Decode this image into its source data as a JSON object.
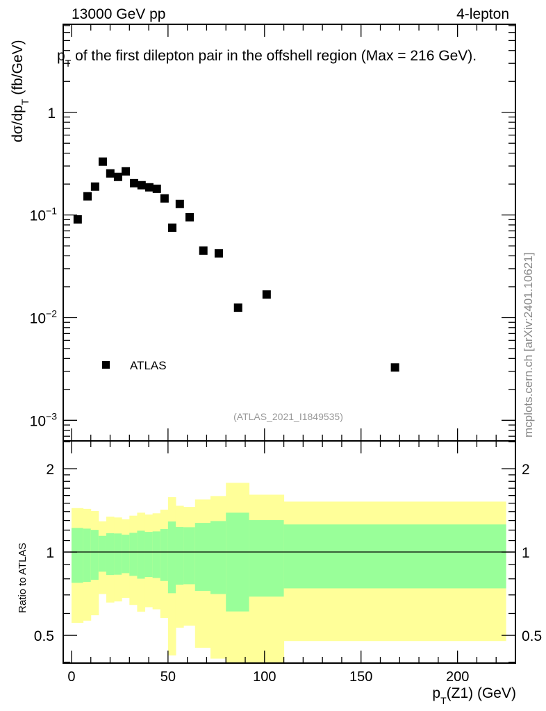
{
  "header": {
    "left": "13000 GeV pp",
    "right": "4-lepton"
  },
  "watermark": "mcplots.cern.ch [arXiv:2401.10621]",
  "analysis_id": "(ATLAS_2021_I1849535)",
  "chart_data": [
    {
      "type": "scatter",
      "title": "p_T of the first dilepton pair in the offshell region (Max = 216 GeV).",
      "title_main": "p",
      "title_sub": "T",
      "title_rest": " of the first dilepton pair in the offshell region (Max = 216 GeV).",
      "ylabel": "dσ/dp_T (fb/GeV)",
      "ylabel_main": "dσ/dp",
      "ylabel_sub": "T",
      "ylabel_rest": " (fb/GeV)",
      "yscale": "log",
      "xlim": [
        -4.3,
        230
      ],
      "ylim": [
        0.00063,
        7.2
      ],
      "ytick_labels": [
        {
          "value": 1,
          "base": "1",
          "exp": ""
        },
        {
          "value": 0.1,
          "base": "10",
          "exp": "−1"
        },
        {
          "value": 0.01,
          "base": "10",
          "exp": "−2"
        },
        {
          "value": 0.001,
          "base": "10",
          "exp": "−3"
        }
      ],
      "legend": {
        "placement": "bottom-left",
        "entries": [
          "ATLAS"
        ]
      },
      "series": [
        {
          "name": "ATLAS",
          "marker": "square",
          "bin_edges": [
            0,
            6,
            10,
            14,
            18,
            22,
            26,
            30,
            34,
            38,
            42,
            46,
            50,
            54,
            58,
            64,
            72,
            80,
            92,
            110,
            225
          ],
          "x": [
            3.2,
            8.3,
            12.2,
            16.2,
            20.1,
            24.1,
            28.1,
            32.4,
            36.3,
            40.3,
            44.2,
            48.2,
            52.2,
            56.1,
            61.2,
            68.3,
            76.3,
            86.3,
            101.1,
            167.6
          ],
          "y": [
            0.0906,
            0.152,
            0.189,
            0.331,
            0.254,
            0.235,
            0.266,
            0.204,
            0.195,
            0.186,
            0.18,
            0.145,
            0.0752,
            0.128,
            0.095,
            0.045,
            0.0423,
            0.0125,
            0.0168,
            0.00327
          ]
        }
      ]
    },
    {
      "type": "area",
      "ylabel": "Ratio to ATLAS",
      "yscale": "log",
      "xlabel": "p_T(Z1) (GeV)",
      "xlabel_main": "p",
      "xlabel_sub": "T",
      "xlabel_rest": "(Z1) (GeV)",
      "xlim": [
        -4.3,
        230
      ],
      "ylim": [
        0.397,
        2.52
      ],
      "xtick_labels": [
        "0",
        "50",
        "100",
        "150",
        "200"
      ],
      "xtick_values": [
        0,
        50,
        100,
        150,
        200
      ],
      "ytick_labels": [
        "2",
        "1",
        "0.5"
      ],
      "ytick_values": [
        2,
        1,
        0.5
      ],
      "reference_line": 1,
      "band_colors": {
        "outer": "#ffff99",
        "inner": "#99ff99"
      },
      "bin_edges": [
        0,
        6,
        10,
        14,
        18,
        22,
        26,
        30,
        34,
        38,
        42,
        46,
        50,
        54,
        58,
        64,
        72,
        80,
        92,
        110,
        225
      ],
      "outer_upper": [
        1.441,
        1.432,
        1.406,
        1.291,
        1.342,
        1.333,
        1.312,
        1.353,
        1.387,
        1.366,
        1.38,
        1.422,
        1.578,
        1.469,
        1.455,
        1.548,
        1.593,
        1.778,
        1.611,
        1.521
      ],
      "inner_upper": [
        1.222,
        1.215,
        1.202,
        1.144,
        1.169,
        1.167,
        1.155,
        1.173,
        1.194,
        1.182,
        1.187,
        1.21,
        1.289,
        1.231,
        1.229,
        1.274,
        1.294,
        1.387,
        1.304,
        1.258
      ],
      "inner_lower": [
        0.774,
        0.78,
        0.794,
        0.849,
        0.826,
        0.828,
        0.839,
        0.82,
        0.801,
        0.812,
        0.806,
        0.786,
        0.71,
        0.762,
        0.765,
        0.724,
        0.705,
        0.61,
        0.69,
        0.739
      ],
      "outer_lower": [
        0.555,
        0.565,
        0.591,
        0.705,
        0.657,
        0.663,
        0.683,
        0.644,
        0.609,
        0.632,
        0.621,
        0.578,
        0.423,
        0.533,
        0.542,
        0.451,
        0.412,
        0.35,
        0.35,
        0.477
      ]
    }
  ]
}
